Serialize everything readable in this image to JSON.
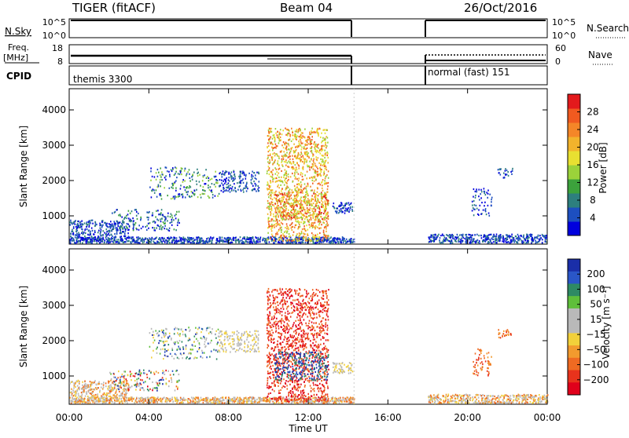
{
  "header": {
    "site": "TIGER (fitACF)",
    "beam": "Beam 04",
    "date": "26/Oct/2016"
  },
  "status_panels": {
    "nsky_label": "N.Sky",
    "nsearch_label": "N.Search",
    "freq_label": "Freq.",
    "freq_unit": "[MHz]",
    "nave_label": "Nave",
    "cpid_label": "CPID",
    "left_ticks": {
      "nsky": [
        "10^5",
        "10^0"
      ],
      "freq": [
        "18",
        "8"
      ]
    },
    "right_ticks": {
      "nsearch": [
        "10^5",
        "10^0"
      ],
      "nave": [
        "60",
        "0"
      ]
    },
    "cpid_1": "themis 3300",
    "cpid_2": "normal (fast) 151"
  },
  "chart_data": [
    {
      "type": "heatmap",
      "title": "",
      "xlabel": "Time UT",
      "ylabel": "Slant Range [km]",
      "x_ticks": [
        "00:00",
        "04:00",
        "08:00",
        "12:00",
        "16:00",
        "20:00",
        "00:00"
      ],
      "xlim": [
        0,
        24
      ],
      "y_ticks": [
        "1000",
        "2000",
        "3000",
        "4000"
      ],
      "ylim": [
        200,
        4600
      ],
      "data_gap_hours": [
        14.3,
        18.0
      ],
      "colorbar": {
        "label": "Power [dB]",
        "ticks": [
          "4",
          "8",
          "12",
          "16",
          "20",
          "24",
          "28"
        ],
        "colors": [
          "#0000dd",
          "#1d4fc0",
          "#2d7f7e",
          "#3ca23c",
          "#9bd23a",
          "#e8e031",
          "#f2b32c",
          "#f48628",
          "#f05a20",
          "#e31a1c"
        ]
      }
    },
    {
      "type": "heatmap",
      "title": "",
      "xlabel": "Time UT",
      "ylabel": "Slant Range [km]",
      "x_ticks": [
        "00:00",
        "04:00",
        "08:00",
        "12:00",
        "16:00",
        "20:00",
        "00:00"
      ],
      "xlim": [
        0,
        24
      ],
      "y_ticks": [
        "1000",
        "2000",
        "3000",
        "4000"
      ],
      "ylim": [
        200,
        4600
      ],
      "data_gap_hours": [
        14.3,
        18.0
      ],
      "colorbar": {
        "label": "Velocity [m s⁻¹]",
        "ticks": [
          "200",
          "100",
          "50",
          "15",
          "−15",
          "−50",
          "−100",
          "−200"
        ],
        "colors": [
          "#1a2ea8",
          "#2a56c8",
          "#2e8a64",
          "#5fbf3a",
          "#b9b9b9",
          "#b9b9b9",
          "#f2d03a",
          "#f29a2e",
          "#ef6a22",
          "#e8331c",
          "#e0001b"
        ]
      }
    }
  ]
}
